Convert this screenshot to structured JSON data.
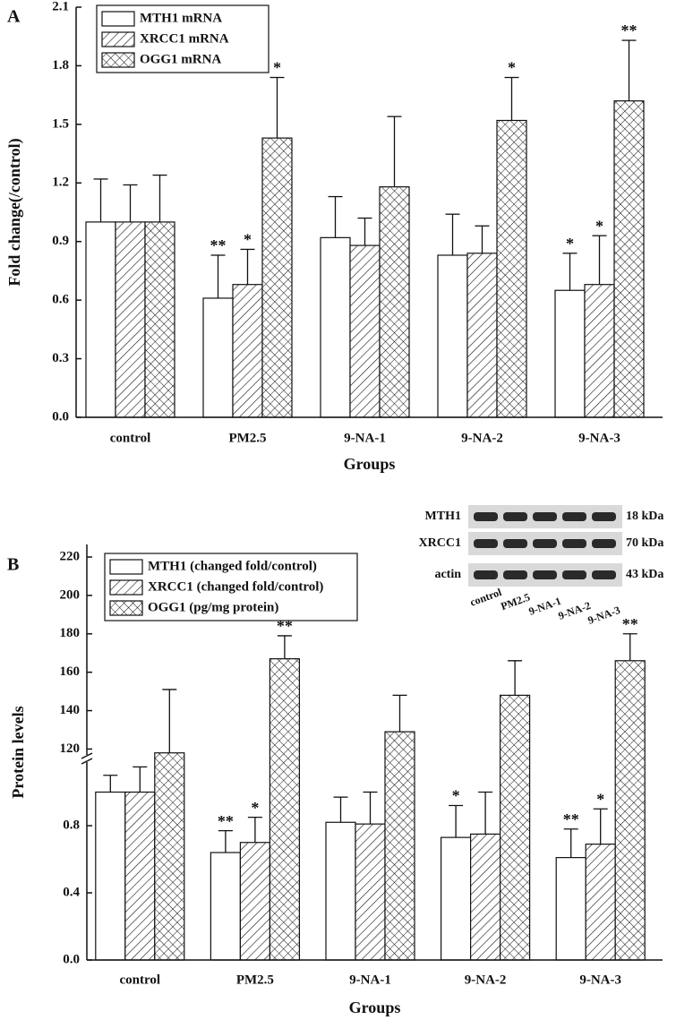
{
  "chart_data": [
    {
      "type": "bar",
      "panel_label": "A",
      "y_label": "Fold change(/control)",
      "x_label": "Groups",
      "categories": [
        "control",
        "PM2.5",
        "9-NA-1",
        "9-NA-2",
        "9-NA-3"
      ],
      "ylim": [
        0,
        2.1
      ],
      "yticks": [
        {
          "value": 0,
          "label": "0.0"
        },
        0.3,
        0.6,
        0.9,
        1.2,
        1.5,
        1.8,
        2.1
      ],
      "legend": "upper left",
      "series": [
        {
          "name": "MTH1 mRNA",
          "color": "#111111",
          "fill": "none",
          "values": [
            1.0,
            0.61,
            0.92,
            0.83,
            0.65
          ],
          "errors": [
            0.22,
            0.22,
            0.21,
            0.21,
            0.19
          ],
          "annotations": [
            null,
            "**",
            null,
            null,
            "*"
          ]
        },
        {
          "name": "XRCC1 mRNA",
          "color": "#111111",
          "fill": "diagonal",
          "values": [
            1.0,
            0.68,
            0.88,
            0.84,
            0.68
          ],
          "errors": [
            0.19,
            0.18,
            0.14,
            0.14,
            0.25
          ],
          "annotations": [
            null,
            "*",
            null,
            null,
            "*"
          ]
        },
        {
          "name": "OGG1 mRNA",
          "color": "#111111",
          "fill": "crosshatch",
          "values": [
            1.0,
            1.43,
            1.18,
            1.52,
            1.62
          ],
          "errors": [
            0.24,
            0.31,
            0.36,
            0.22,
            0.31
          ],
          "annotations": [
            null,
            "*",
            null,
            "*",
            "**"
          ]
        }
      ]
    },
    {
      "type": "bar",
      "panel_label": "B",
      "y_label": "Protein levels",
      "x_label": "Groups",
      "categories": [
        "control",
        "PM2.5",
        "9-NA-1",
        "9-NA-2",
        "9-NA-3"
      ],
      "ylim": [
        0,
        1.2
      ],
      "yticks": [
        {
          "value": 0,
          "label": "0.0"
        },
        0.4,
        0.8
      ],
      "y2lim": [
        116,
        220
      ],
      "y2ticks": [
        120,
        140,
        160,
        180,
        200,
        220
      ],
      "axis_break": true,
      "legend": "upper left",
      "series": [
        {
          "name": "MTH1 (changed fold/control)",
          "color": "#111111",
          "fill": "none",
          "values": [
            1.0,
            0.64,
            0.82,
            0.73,
            0.61
          ],
          "errors": [
            0.1,
            0.13,
            0.15,
            0.19,
            0.17
          ],
          "annotations": [
            null,
            "**",
            null,
            "*",
            "**"
          ]
        },
        {
          "name": "XRCC1 (changed fold/control)",
          "color": "#111111",
          "fill": "diagonal",
          "values": [
            1.0,
            0.7,
            0.81,
            0.75,
            0.69
          ],
          "errors": [
            0.15,
            0.15,
            0.19,
            0.25,
            0.21
          ],
          "annotations": [
            null,
            "*",
            null,
            null,
            "*"
          ]
        },
        {
          "name": "OGG1 (pg/mg protein)",
          "color": "#111111",
          "fill": "crosshatch",
          "axis": "y2",
          "values": [
            118,
            167,
            129,
            148,
            166
          ],
          "errors": [
            33,
            12,
            19,
            18,
            14
          ],
          "annotations": [
            null,
            "**",
            null,
            null,
            "**"
          ]
        }
      ],
      "inset": {
        "rows": [
          {
            "label": "MTH1",
            "size": "18 kDa"
          },
          {
            "label": "XRCC1",
            "size": "70 kDa"
          },
          {
            "label": "actin",
            "size": "43 kDa"
          }
        ],
        "lanes": [
          "control",
          "PM2.5",
          "9-NA-1",
          "9-NA-2",
          "9-NA-3"
        ]
      }
    }
  ]
}
